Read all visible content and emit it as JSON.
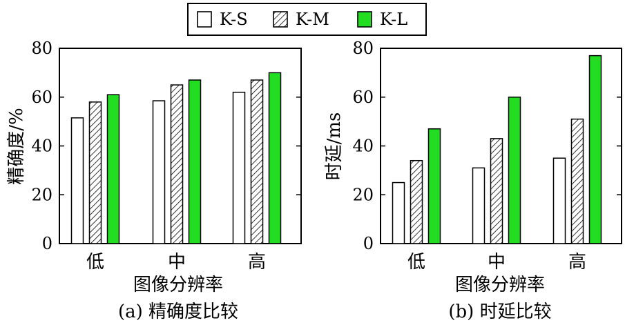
{
  "legend": {
    "entries": [
      {
        "label": "K-S",
        "fill": "white"
      },
      {
        "label": "K-M",
        "fill": "hatch"
      },
      {
        "label": "K-L",
        "fill": "#22dd22"
      }
    ]
  },
  "chart_data": [
    {
      "type": "bar",
      "categories": [
        "低",
        "中",
        "高"
      ],
      "series": [
        {
          "name": "K-S",
          "values": [
            51.5,
            58.5,
            62
          ]
        },
        {
          "name": "K-M",
          "values": [
            58,
            65,
            67
          ]
        },
        {
          "name": "K-L",
          "values": [
            61,
            67,
            70
          ]
        }
      ],
      "xlabel": "图像分辨率",
      "ylabel": "精确度/%",
      "ylim": [
        0,
        80
      ],
      "yticks": [
        0,
        20,
        40,
        60,
        80
      ],
      "caption": "(a) 精确度比较",
      "grid": false
    },
    {
      "type": "bar",
      "categories": [
        "低",
        "中",
        "高"
      ],
      "series": [
        {
          "name": "K-S",
          "values": [
            25,
            31,
            35
          ]
        },
        {
          "name": "K-M",
          "values": [
            34,
            43,
            51
          ]
        },
        {
          "name": "K-L",
          "values": [
            47,
            60,
            77
          ]
        }
      ],
      "xlabel": "图像分辨率",
      "ylabel": "时延/ms",
      "ylim": [
        0,
        80
      ],
      "yticks": [
        0,
        20,
        40,
        60,
        80
      ],
      "caption": "(b) 时延比较",
      "grid": false
    }
  ]
}
